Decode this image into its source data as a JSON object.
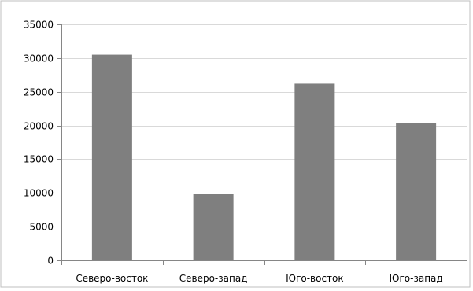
{
  "chart_data": {
    "type": "bar",
    "categories": [
      "Северо-восток",
      "Северо-запад",
      "Юго-восток",
      "Юго-запад"
    ],
    "values": [
      30500,
      9800,
      26200,
      20400
    ],
    "y_ticks": [
      0,
      5000,
      10000,
      15000,
      20000,
      25000,
      30000,
      35000
    ],
    "y_tick_labels": [
      "0",
      "5000",
      "10000",
      "15000",
      "20000",
      "25000",
      "30000",
      "35000"
    ],
    "ylim": [
      0,
      35000
    ],
    "grid": true,
    "legend": "none",
    "bar_color": "#7f7f7f",
    "grid_color": "#d9d9d9",
    "axis_color": "#868686",
    "frame_color": "#bfbfbf"
  }
}
